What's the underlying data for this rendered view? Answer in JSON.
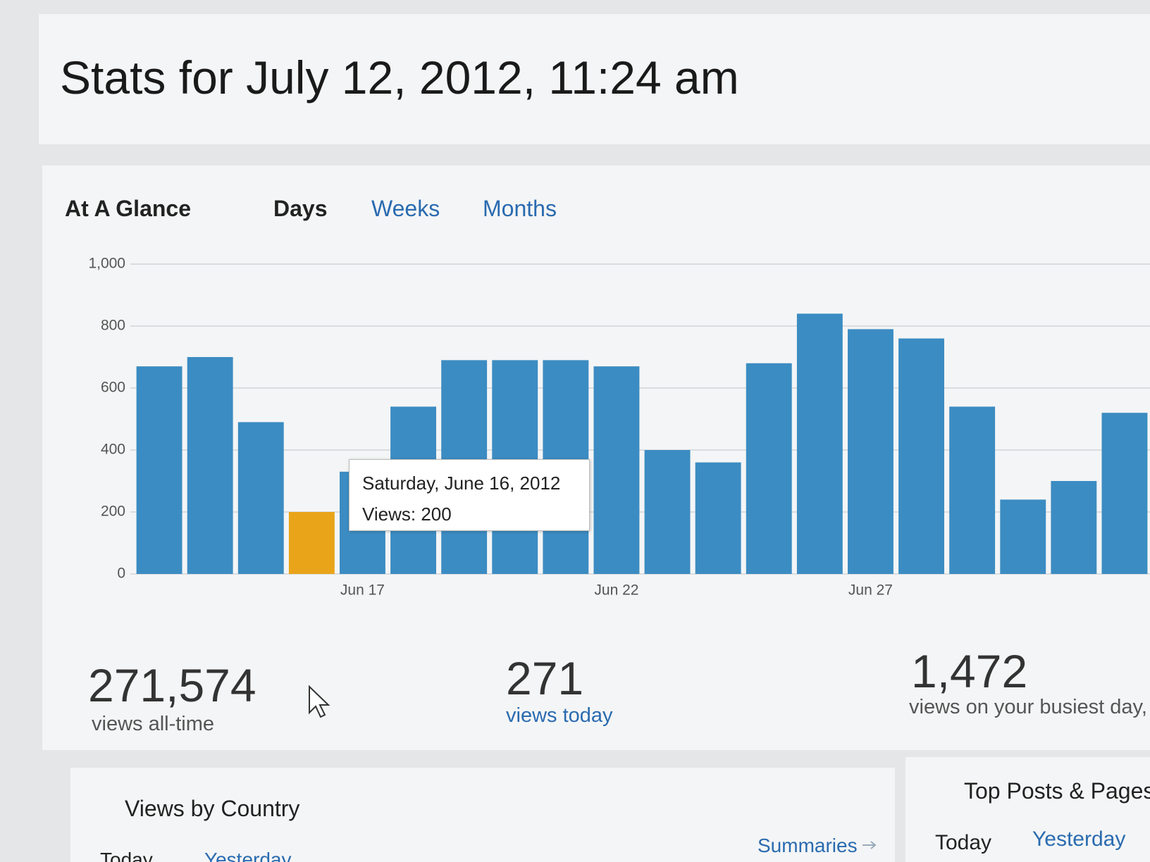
{
  "header": {
    "title": "Stats for July 12, 2012, 11:24 am"
  },
  "tabs": {
    "heading": "At A Glance",
    "items": [
      "Days",
      "Weeks",
      "Months"
    ]
  },
  "chart_data": {
    "type": "bar",
    "categories": [
      null,
      null,
      null,
      null,
      "Jun 17",
      null,
      null,
      null,
      null,
      "Jun 22",
      null,
      null,
      null,
      null,
      "Jun 27",
      null,
      null,
      null,
      null,
      null
    ],
    "values": [
      670,
      700,
      490,
      200,
      330,
      540,
      690,
      690,
      690,
      670,
      400,
      360,
      680,
      840,
      790,
      760,
      540,
      240,
      300,
      520
    ],
    "bar_colors": [
      "#3b8cc2",
      "#3b8cc2",
      "#3b8cc2",
      "#e9a419",
      "#3b8cc2",
      "#3b8cc2",
      "#3b8cc2",
      "#3b8cc2",
      "#3b8cc2",
      "#3b8cc2",
      "#3b8cc2",
      "#3b8cc2",
      "#3b8cc2",
      "#3b8cc2",
      "#3b8cc2",
      "#3b8cc2",
      "#3b8cc2",
      "#3b8cc2",
      "#3b8cc2",
      "#3b8cc2"
    ],
    "ylim": [
      0,
      1000
    ],
    "yticks": [
      0,
      200,
      400,
      600,
      800,
      {
        "value": 1000,
        "label": "1,000"
      }
    ],
    "grid": true,
    "tooltip": {
      "title": "Saturday, June 16, 2012",
      "text": "Views: 200"
    }
  },
  "summary": [
    {
      "number": "271,574",
      "label": "views all-time"
    },
    {
      "number": "271",
      "label": "views today"
    },
    {
      "number": "1,472",
      "label": "views on your busiest day,"
    }
  ],
  "lower": {
    "country_title": "Views by Country",
    "country_tabs": [
      "Today",
      "Yesterday"
    ],
    "summaries_link": "Summaries",
    "top_title": "Top Posts & Pages",
    "top_tabs": [
      "Today",
      "Yesterday"
    ]
  }
}
